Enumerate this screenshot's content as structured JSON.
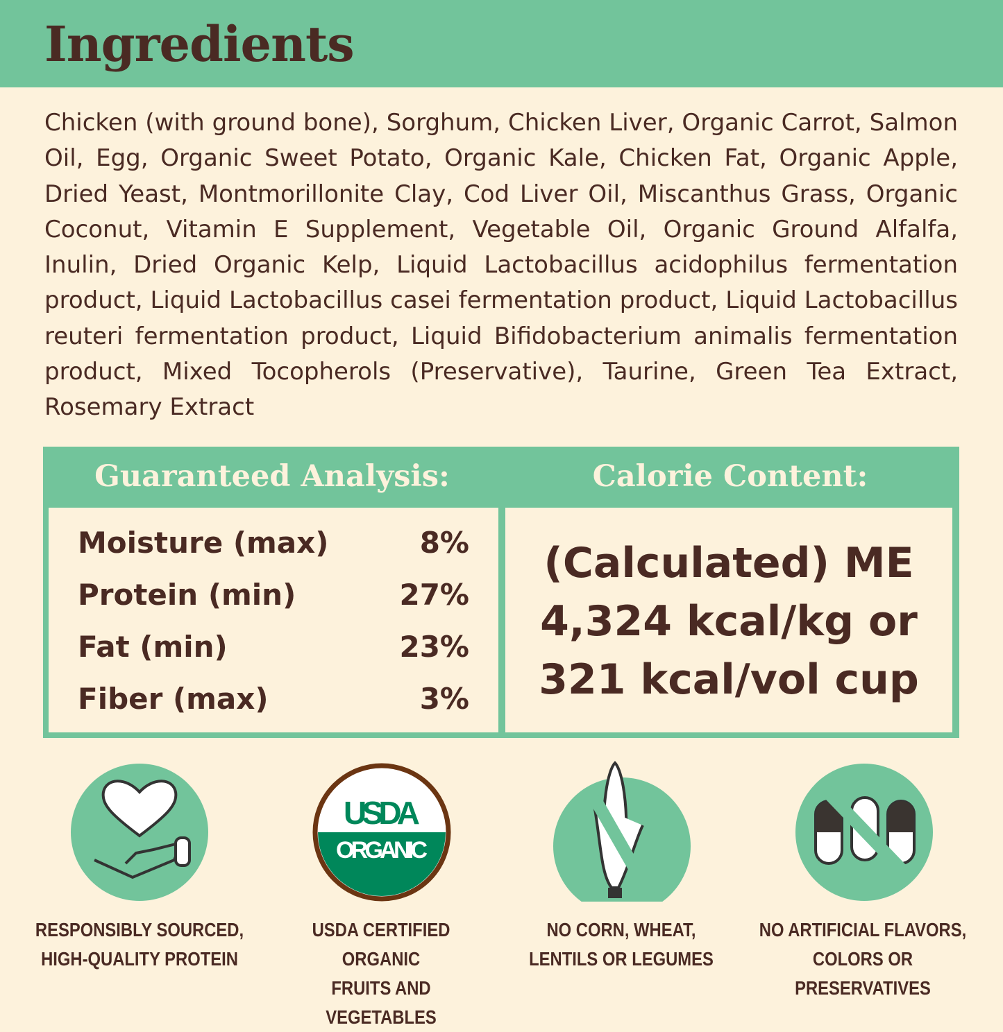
{
  "header": {
    "title": "Ingredients"
  },
  "ingredients": "Chicken (with ground bone), Sorghum, Chicken Liver, Organic Carrot, Salmon Oil, Egg, Organic Sweet Potato, Organic Kale, Chicken Fat, Organic Apple, Dried Yeast, Montmorillonite Clay, Cod Liver Oil, Miscanthus Grass, Organic Coconut, Vitamin E Supplement, Vegetable Oil, Organic Ground Alfalfa, Inulin, Dried Organic Kelp, Liquid Lactobacillus acidophilus fermentation product, Liquid Lactobacillus casei fermentation product, Liquid Lactobacillus reuteri fermentation product, Liquid Bifidobacterium animalis fermentation product, Mixed Tocopherols (Preservative), Taurine, Green Tea Extract, Rosemary Extract",
  "analysis": {
    "title": "Guaranteed Analysis:",
    "rows": [
      {
        "label": "Moisture (max)",
        "value": "8%"
      },
      {
        "label": "Protein (min)",
        "value": "27%"
      },
      {
        "label": "Fat (min)",
        "value": "23%"
      },
      {
        "label": "Fiber (max)",
        "value": "3%"
      }
    ]
  },
  "calorie": {
    "title": "Calorie Content:",
    "line1": "(Calculated) ME",
    "line2": "4,324 kcal/kg or",
    "line3": "321 kcal/vol cup"
  },
  "badges": [
    {
      "icon": "heart-hand-icon",
      "line1": "RESPONSIBLY SOURCED,",
      "line2": "HIGH-QUALITY PROTEIN"
    },
    {
      "icon": "usda-organic-seal",
      "seal_top": "USDA",
      "seal_bottom": "ORGANIC",
      "line1": "USDA CERTIFIED ORGANIC",
      "line2": "FRUITS AND VEGETABLES"
    },
    {
      "icon": "no-corn-icon",
      "line1": "NO CORN, WHEAT,",
      "line2": "LENTILS OR LEGUMES"
    },
    {
      "icon": "no-pills-icon",
      "line1": "NO ARTIFICIAL FLAVORS,",
      "line2": "COLORS OR PRESERVATIVES"
    }
  ],
  "colors": {
    "green": "#72c49b",
    "cream": "#fdf2dc",
    "brown": "#4a2a23",
    "usda_green": "#00875a"
  }
}
